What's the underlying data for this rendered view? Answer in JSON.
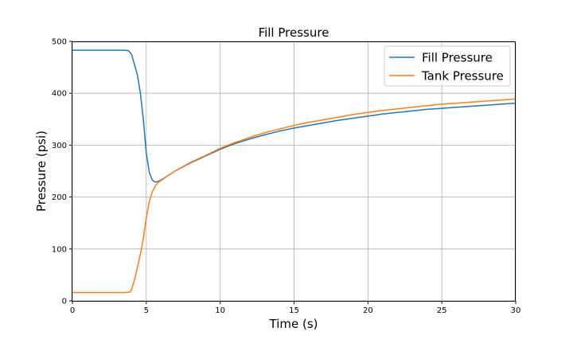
{
  "chart_data": {
    "type": "line",
    "title": "Fill Pressure",
    "xlabel": "Time (s)",
    "ylabel": "Pressure (psi)",
    "xlim": [
      0,
      30
    ],
    "ylim": [
      0,
      500
    ],
    "xticks": [
      0,
      5,
      10,
      15,
      20,
      25,
      30
    ],
    "yticks": [
      0,
      100,
      200,
      300,
      400,
      500
    ],
    "grid": true,
    "legend_position": "top-right",
    "series": [
      {
        "name": "Fill Pressure",
        "color": "#1f77b4",
        "x": [
          0,
          1,
          2,
          3,
          3.5,
          3.8,
          4.0,
          4.2,
          4.4,
          4.6,
          4.8,
          5.0,
          5.2,
          5.4,
          5.6,
          5.8,
          6.0,
          6.5,
          7,
          8,
          9,
          10,
          11,
          12,
          13,
          14,
          15,
          16,
          17,
          18,
          19,
          20,
          21,
          22,
          23,
          24,
          25,
          26,
          27,
          28,
          29,
          30
        ],
        "y": [
          483,
          483,
          483,
          483,
          483,
          482,
          475,
          455,
          435,
          400,
          350,
          285,
          248,
          233,
          229,
          230,
          233,
          242,
          251,
          266,
          279,
          292,
          303,
          312,
          320,
          327,
          333,
          338,
          343,
          348,
          352,
          356,
          360,
          363,
          366,
          369,
          371,
          373,
          375,
          377,
          379,
          381
        ]
      },
      {
        "name": "Tank Pressure",
        "color": "#ff7f0e",
        "x": [
          0,
          1,
          2,
          3,
          3.6,
          3.9,
          4.0,
          4.2,
          4.4,
          4.6,
          4.8,
          5.0,
          5.2,
          5.4,
          5.6,
          5.8,
          6.0,
          6.5,
          7,
          8,
          9,
          10,
          11,
          12,
          13,
          14,
          15,
          16,
          17,
          18,
          19,
          20,
          21,
          22,
          23,
          24,
          25,
          26,
          27,
          28,
          29,
          30
        ],
        "y": [
          16,
          16,
          16,
          16,
          16,
          17,
          22,
          40,
          65,
          90,
          120,
          160,
          190,
          210,
          221,
          228,
          232,
          242,
          251,
          267,
          280,
          294,
          305,
          315,
          324,
          331,
          338,
          344,
          349,
          354,
          359,
          363,
          367,
          370,
          373,
          376,
          379,
          381,
          383,
          385,
          387,
          389
        ]
      }
    ]
  }
}
